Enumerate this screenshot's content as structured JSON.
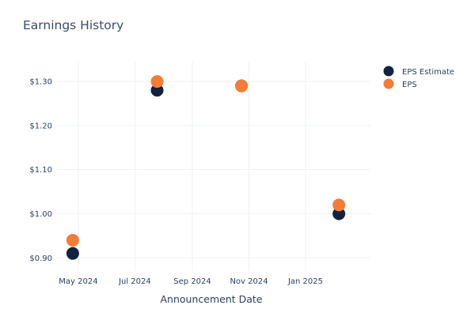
{
  "chart_data": {
    "type": "scatter",
    "title": "Earnings History",
    "xlabel": "Announcement Date",
    "ylabel": "",
    "x_ticks": [
      "May 2024",
      "Jul 2024",
      "Sep 2024",
      "Nov 2024",
      "Jan 2025"
    ],
    "y_ticks": [
      "$0.90",
      "$1.00",
      "$1.10",
      "$1.20",
      "$1.30"
    ],
    "ylim": [
      0.87,
      1.345
    ],
    "xlim": [
      "2024-04-08",
      "2025-03-12"
    ],
    "grid": true,
    "legend_position": "top-right",
    "series": [
      {
        "name": "EPS Estimate",
        "color": "#13223f",
        "points": [
          {
            "x": "2024-04-25",
            "y": 0.91
          },
          {
            "x": "2024-07-25",
            "y": 1.28
          },
          {
            "x": "2024-10-24",
            "y": 1.29
          },
          {
            "x": "2025-02-06",
            "y": 1.0
          }
        ]
      },
      {
        "name": "EPS",
        "color": "#f47c36",
        "points": [
          {
            "x": "2024-04-25",
            "y": 0.94
          },
          {
            "x": "2024-07-25",
            "y": 1.3
          },
          {
            "x": "2024-10-24",
            "y": 1.29
          },
          {
            "x": "2025-02-06",
            "y": 1.02
          }
        ]
      }
    ]
  }
}
